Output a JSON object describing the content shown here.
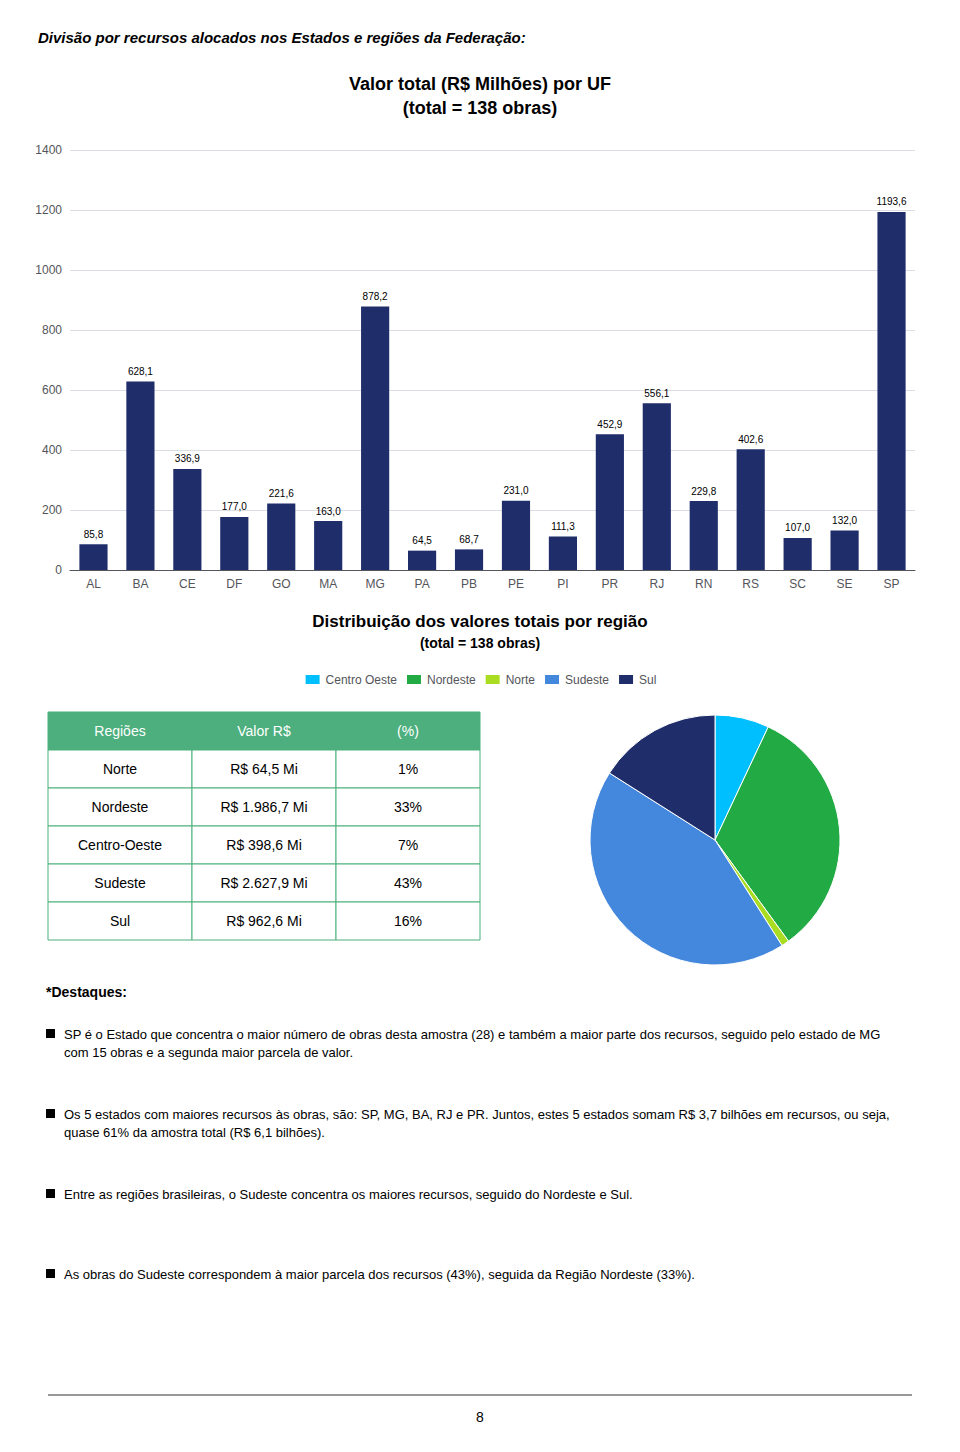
{
  "chart_data": [
    {
      "type": "bar",
      "title": "Valor total (R$ Milhões) por UF",
      "subtitle": "(total = 138 obras)",
      "categories": [
        "AL",
        "BA",
        "CE",
        "DF",
        "GO",
        "MA",
        "MG",
        "PA",
        "PB",
        "PE",
        "PI",
        "PR",
        "RJ",
        "RN",
        "RS",
        "SC",
        "SE",
        "SP"
      ],
      "values": [
        85.8,
        628.1,
        336.9,
        177.0,
        221.6,
        163.0,
        878.2,
        64.5,
        68.7,
        231.0,
        111.3,
        452.9,
        556.1,
        229.8,
        402.6,
        107.0,
        132.0,
        1193.6
      ],
      "value_labels": [
        "85,8",
        "628,1",
        "336,9",
        "177,0",
        "221,6",
        "163,0",
        "878,2",
        "64,5",
        "68,7",
        "231,0",
        "111,3",
        "452,9",
        "556,1",
        "229,8",
        "402,6",
        "107,0",
        "132,0",
        "1193,6"
      ],
      "color": "#1F2D6B",
      "ylim": [
        0,
        1400
      ],
      "yticks": [
        0,
        200,
        400,
        600,
        800,
        1000,
        1200,
        1400
      ],
      "grid": true,
      "data_labels": true
    },
    {
      "type": "pie",
      "title": "Distribuição dos valores totais por região",
      "subtitle": "(total = 138 obras)",
      "categories": [
        "Centro Oeste",
        "Nordeste",
        "Norte",
        "Sudeste",
        "Sul"
      ],
      "values": [
        7,
        33,
        1,
        43,
        16
      ],
      "colors": [
        "#00BFFF",
        "#22AA44",
        "#AADD22",
        "#4488DD",
        "#1F2D6B"
      ],
      "legend": "top"
    },
    {
      "type": "table",
      "columns": [
        "Regiões",
        "Valor R$",
        "(%)"
      ],
      "rows": [
        [
          "Norte",
          "R$ 64,5 Mi",
          "1%"
        ],
        [
          "Nordeste",
          "R$ 1.986,7 Mi",
          "33%"
        ],
        [
          "Centro-Oeste",
          "R$ 398,6 Mi",
          "7%"
        ],
        [
          "Sudeste",
          "R$ 2.627,9 Mi",
          "43%"
        ],
        [
          "Sul",
          "R$ 962,6 Mi",
          "16%"
        ]
      ],
      "color": "#4CAF7D"
    }
  ],
  "annotations": {
    "header": "Divisão por recursos alocados nos Estados e regiões da Federação:",
    "notes_title": "*Destaques:",
    "notes": [
      "SP é o Estado que concentra o maior número de obras desta amostra (28) e também a maior parte dos recursos, seguido pelo estado de MG com 15 obras e a segunda maior parcela de valor.",
      "Os 5 estados com maiores recursos às obras, são: SP, MG, BA, RJ e PR. Juntos, estes 5 estados somam R$ 3,7 bilhões em recursos, ou seja, quase 61% da amostra total (R$ 6,1 bilhões).",
      "Entre as regiões brasileiras, o Sudeste concentra os maiores recursos, seguido do Nordeste e Sul.",
      "As obras do Sudeste correspondem à maior parcela dos recursos (43%), seguida da Região Nordeste (33%)."
    ],
    "page_number": "8"
  }
}
